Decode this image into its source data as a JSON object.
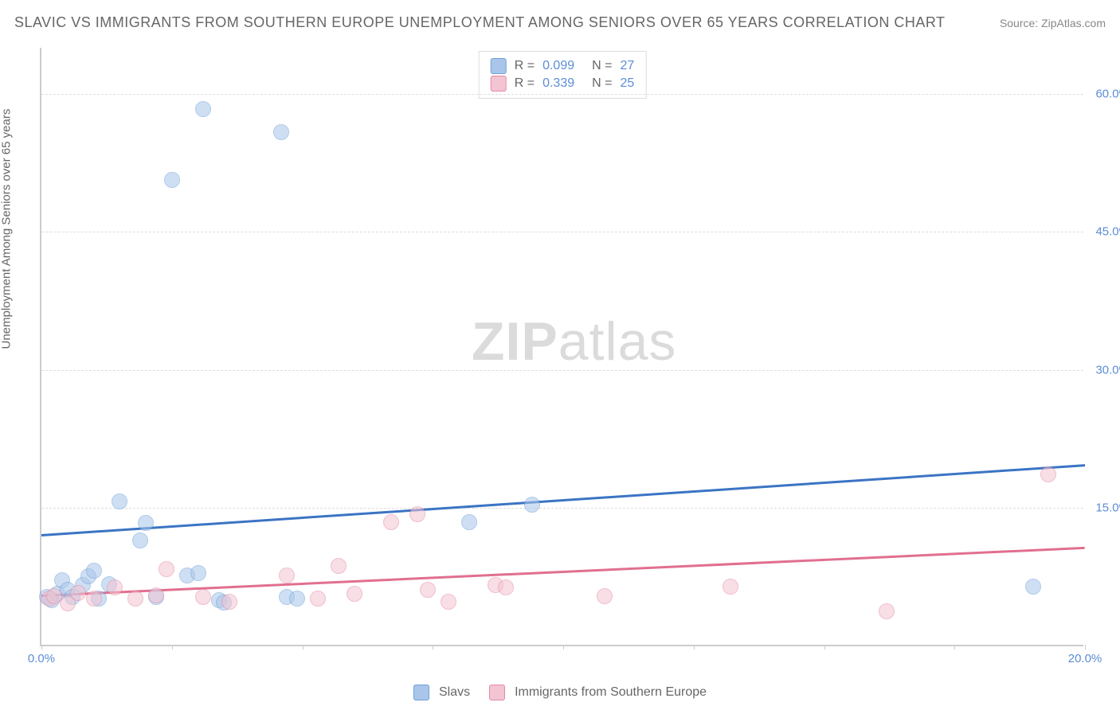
{
  "title": "SLAVIC VS IMMIGRANTS FROM SOUTHERN EUROPE UNEMPLOYMENT AMONG SENIORS OVER 65 YEARS CORRELATION CHART",
  "source": "Source: ZipAtlas.com",
  "ylabel": "Unemployment Among Seniors over 65 years",
  "chart": {
    "type": "scatter",
    "background_color": "#ffffff",
    "grid_color": "#dddddd",
    "axis_color": "#cccccc",
    "tick_label_color": "#5b8dd6",
    "tick_fontsize": 15,
    "xlim": [
      0,
      20
    ],
    "ylim": [
      0,
      65
    ],
    "xticks": [
      0,
      20
    ],
    "xtick_labels": [
      "0.0%",
      "20.0%"
    ],
    "xtick_minor_step": 2.5,
    "yticks": [
      15,
      30,
      45,
      60
    ],
    "ytick_labels": [
      "15.0%",
      "30.0%",
      "45.0%",
      "60.0%"
    ],
    "point_radius": 10,
    "point_opacity": 0.55,
    "point_stroke_width": 1.5,
    "trend_line_width": 2.5,
    "series": [
      {
        "name": "Slavs",
        "fill_color": "#a9c6ea",
        "stroke_color": "#6f9fd8",
        "line_color": "#3b74c4",
        "R": "0.099",
        "N": "27",
        "points": [
          [
            0.1,
            5.2
          ],
          [
            0.2,
            4.8
          ],
          [
            0.3,
            5.5
          ],
          [
            0.4,
            7.0
          ],
          [
            0.5,
            6.0
          ],
          [
            0.6,
            5.2
          ],
          [
            0.8,
            6.5
          ],
          [
            0.9,
            7.4
          ],
          [
            1.0,
            8.0
          ],
          [
            1.1,
            5.0
          ],
          [
            1.3,
            6.6
          ],
          [
            1.5,
            15.6
          ],
          [
            1.9,
            11.3
          ],
          [
            2.0,
            13.2
          ],
          [
            2.2,
            5.2
          ],
          [
            2.5,
            50.5
          ],
          [
            2.8,
            7.5
          ],
          [
            3.0,
            7.8
          ],
          [
            3.1,
            58.2
          ],
          [
            3.4,
            4.8
          ],
          [
            3.5,
            4.6
          ],
          [
            4.6,
            55.7
          ],
          [
            4.7,
            5.2
          ],
          [
            4.9,
            5.0
          ],
          [
            8.2,
            13.3
          ],
          [
            9.4,
            15.2
          ],
          [
            19.0,
            6.3
          ]
        ],
        "trend": {
          "x1": 0,
          "y1": 12.2,
          "x2": 20,
          "y2": 19.8
        }
      },
      {
        "name": "Immigrants from Southern Europe",
        "fill_color": "#f3c4d1",
        "stroke_color": "#e48ba5",
        "line_color": "#e16f8f",
        "R": "0.339",
        "N": "25",
        "points": [
          [
            0.15,
            5.0
          ],
          [
            0.25,
            5.3
          ],
          [
            0.5,
            4.5
          ],
          [
            0.7,
            5.6
          ],
          [
            1.0,
            5.0
          ],
          [
            1.4,
            6.2
          ],
          [
            1.8,
            5.0
          ],
          [
            2.2,
            5.4
          ],
          [
            2.4,
            8.2
          ],
          [
            3.1,
            5.2
          ],
          [
            3.6,
            4.7
          ],
          [
            4.7,
            7.5
          ],
          [
            5.3,
            5.0
          ],
          [
            5.7,
            8.6
          ],
          [
            6.0,
            5.5
          ],
          [
            6.7,
            13.3
          ],
          [
            7.2,
            14.2
          ],
          [
            7.4,
            6.0
          ],
          [
            7.8,
            4.7
          ],
          [
            8.7,
            6.5
          ],
          [
            8.9,
            6.2
          ],
          [
            10.8,
            5.3
          ],
          [
            13.2,
            6.3
          ],
          [
            16.2,
            3.6
          ],
          [
            19.3,
            18.5
          ]
        ],
        "trend": {
          "x1": 0,
          "y1": 5.6,
          "x2": 20,
          "y2": 10.8
        }
      }
    ]
  },
  "legend_top": {
    "r_label": "R =",
    "n_label": "N ="
  },
  "legend_bottom": {
    "series1": "Slavs",
    "series2": "Immigrants from Southern Europe"
  },
  "watermark": {
    "bold": "ZIP",
    "light": "atlas"
  }
}
